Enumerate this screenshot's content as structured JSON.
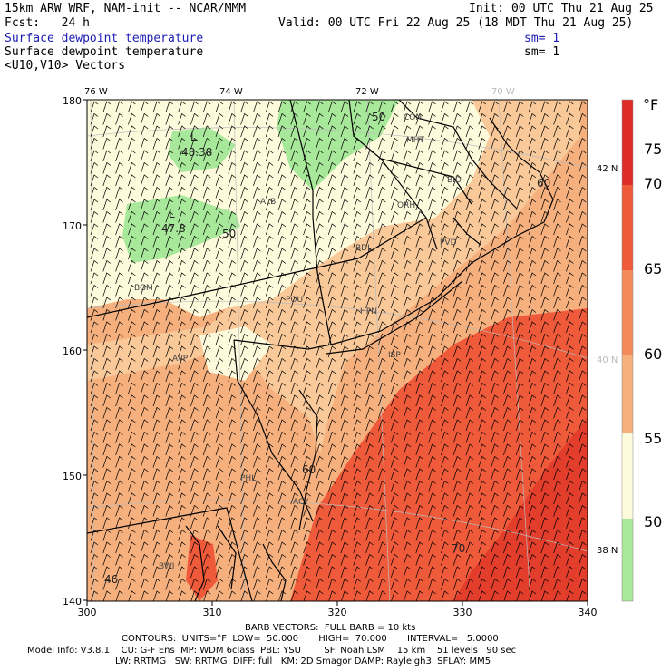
{
  "header": {
    "model_title": "15km ARW WRF, NAM-init -- NCAR/MMM",
    "init_time": "Init: 00 UTC Thu 21 Aug 25",
    "forecast_hour": "Fcst:   24 h",
    "valid_time": "Valid: 00 UTC Fri 22 Aug 25 (18 MDT Thu 21 Aug 25)",
    "field1_name": "Surface dewpoint temperature",
    "field1_sm": "sm= 1",
    "field2_name": "Surface dewpoint temperature",
    "field2_sm": "sm= 1",
    "field3_name": "<U10,V10> Vectors"
  },
  "axes": {
    "lon_labels": [
      "76 W",
      "74 W",
      "72 W",
      "70 W"
    ],
    "lat_labels": [
      "42 N",
      "40 N",
      "38 N"
    ],
    "y_ticks": [
      "180",
      "170",
      "160",
      "150",
      "140"
    ],
    "x_ticks": [
      "300",
      "310",
      "320",
      "330",
      "340"
    ]
  },
  "colorbar": {
    "unit": "°F",
    "labels": [
      "75",
      "70",
      "65",
      "60",
      "55",
      "50"
    ],
    "colors": [
      "#de2d26",
      "#ef5a3a",
      "#f48a5a",
      "#f6b07e",
      "#fbe3b8",
      "#fefbdc",
      "#a8e89a"
    ]
  },
  "map": {
    "stations": [
      "BGM",
      "ALB",
      "ORH",
      "BDL",
      "BID",
      "PVD",
      "POU",
      "HPN",
      "ISP",
      "AVP",
      "PHL",
      "ACY",
      "BWI",
      "MHT",
      "CON"
    ],
    "contour_labels": [
      "50",
      "50",
      "60",
      "60",
      "70",
      "48.38",
      "47.8",
      "46"
    ],
    "low_markers": [
      "L",
      "L"
    ]
  },
  "footer": {
    "barb_line": "BARB VECTORS:  FULL BARB = 10 kts",
    "contours_line": "CONTOURS:  UNITS=°F  LOW=  50.000       HIGH=  70.000       INTERVAL=   5.0000",
    "model_info_line": "Model Info: V3.8.1    CU: G-F Ens  MP: WDM 6class  PBL: YSU        SF: Noah LSM    15 km    51 levels   90 sec",
    "physics_line": "LW: RRTMG   SW: RRTMG  DIFF: full   KM: 2D Smagor DAMP: Rayleigh3  SFLAY: MM5"
  }
}
